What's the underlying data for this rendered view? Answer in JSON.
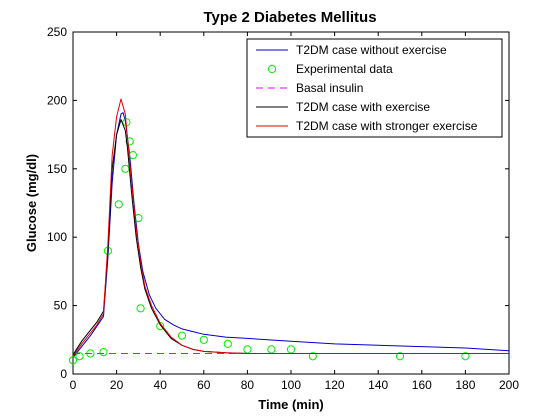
{
  "chart_data": {
    "type": "line",
    "title": "Type 2 Diabetes Mellitus",
    "xlabel": "Time (min)",
    "ylabel": "Glucose (mg/dl)",
    "xlim": [
      0,
      200
    ],
    "ylim": [
      0,
      250
    ],
    "xticks": [
      0,
      20,
      40,
      60,
      80,
      100,
      120,
      140,
      160,
      180,
      200
    ],
    "yticks": [
      0,
      50,
      100,
      150,
      200,
      250
    ],
    "grid": false,
    "legend_position": "top-right",
    "series": [
      {
        "name": "T2DM case without exercise",
        "kind": "line",
        "color": "#0000cc",
        "dash": "solid",
        "x": [
          0,
          4,
          8,
          11,
          14,
          16,
          18,
          20,
          22,
          23,
          24,
          26,
          28,
          30,
          32,
          35,
          38,
          42,
          46,
          50,
          55,
          60,
          70,
          80,
          100,
          120,
          140,
          160,
          180,
          200
        ],
        "y": [
          12,
          20,
          28,
          35,
          42,
          85,
          140,
          175,
          190,
          191,
          185,
          160,
          125,
          95,
          75,
          58,
          48,
          40,
          36,
          33,
          31,
          29,
          27,
          26,
          24,
          22,
          21,
          20,
          19,
          17
        ]
      },
      {
        "name": "Experimental data",
        "kind": "scatter",
        "color": "#00ee00",
        "x": [
          0,
          3,
          8,
          14,
          16,
          21,
          24,
          24.5,
          26,
          27.5,
          30,
          31,
          40,
          50,
          60,
          71,
          80,
          91,
          100,
          110,
          150,
          180
        ],
        "y": [
          10,
          13,
          15,
          16,
          90,
          124,
          150,
          184,
          170,
          160,
          114,
          48,
          35,
          28,
          25,
          22,
          18,
          18,
          18,
          13,
          13,
          13
        ]
      },
      {
        "name": "Basal insulin",
        "kind": "line",
        "color": "#ee00ee",
        "dash": "dashed",
        "x": [
          0,
          200
        ],
        "y": [
          15,
          15
        ]
      },
      {
        "name": "T2DM case with exercise",
        "kind": "line",
        "color": "#000000",
        "dash": "solid",
        "x": [
          0,
          4,
          8,
          11,
          14,
          16,
          18,
          20,
          22,
          24,
          25,
          27,
          29,
          31,
          33,
          36,
          40,
          45,
          50,
          55,
          60,
          70,
          80,
          100,
          140,
          200
        ],
        "y": [
          14,
          24,
          32,
          38,
          46,
          90,
          150,
          175,
          186,
          178,
          165,
          130,
          100,
          78,
          62,
          48,
          36,
          26,
          21,
          18,
          16.5,
          15.5,
          15,
          15,
          15,
          15
        ]
      },
      {
        "name": "T2DM case with stronger exercise",
        "kind": "line",
        "color": "#dd0000",
        "dash": "solid",
        "x": [
          0,
          4,
          8,
          11,
          14,
          16,
          18,
          20,
          22,
          24,
          25,
          27,
          29,
          31,
          33,
          36,
          40,
          45,
          50,
          55,
          60,
          70,
          80,
          100,
          140,
          200
        ],
        "y": [
          13,
          22,
          30,
          36,
          44,
          95,
          160,
          188,
          201,
          190,
          172,
          138,
          106,
          82,
          64,
          50,
          37,
          27,
          21,
          18,
          16.5,
          15.5,
          15,
          15,
          15,
          15
        ]
      }
    ]
  }
}
